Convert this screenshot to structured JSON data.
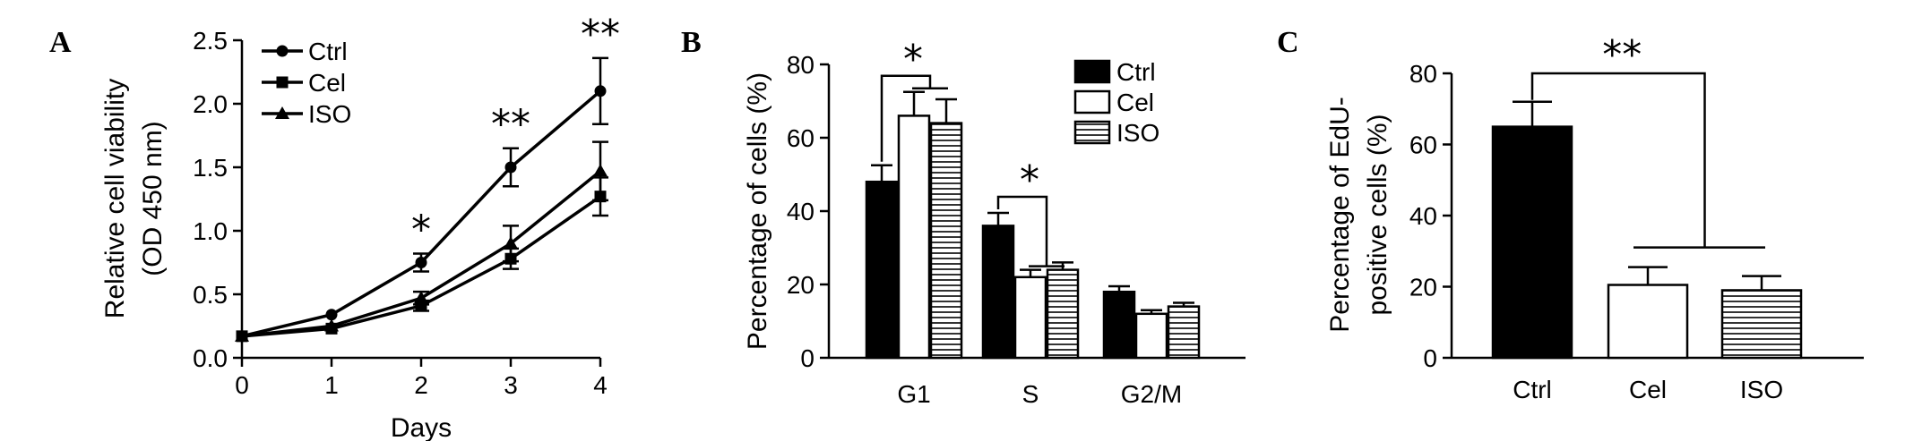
{
  "chart_data": [
    {
      "panel": "A",
      "type": "line",
      "xlabel": "Days",
      "ylabel_lines": [
        "Relative cell viability",
        "(OD 450 nm)"
      ],
      "x": [
        0,
        1,
        2,
        3,
        4
      ],
      "xticks": [
        "0",
        "1",
        "2",
        "3",
        "4"
      ],
      "xlim": [
        0,
        4
      ],
      "yticks": [
        "0.0",
        "0.5",
        "1.0",
        "1.5",
        "2.0",
        "2.5"
      ],
      "ylim": [
        0,
        2.5
      ],
      "series": [
        {
          "name": "Ctrl",
          "marker": "circle",
          "values": [
            0.17,
            0.34,
            0.75,
            1.5,
            2.1
          ],
          "errors": [
            0.02,
            0.03,
            0.07,
            0.15,
            0.26
          ]
        },
        {
          "name": "Cel",
          "marker": "square",
          "values": [
            0.17,
            0.23,
            0.41,
            0.78,
            1.27
          ],
          "errors": [
            0.02,
            0.02,
            0.04,
            0.08,
            0.15
          ]
        },
        {
          "name": "ISO",
          "marker": "triangle",
          "values": [
            0.17,
            0.25,
            0.47,
            0.9,
            1.47
          ],
          "errors": [
            0.02,
            0.02,
            0.05,
            0.14,
            0.23
          ]
        }
      ],
      "annotations": [
        {
          "text": "*",
          "x": 2
        },
        {
          "text": "**",
          "x": 3
        },
        {
          "text": "**",
          "x": 4
        }
      ],
      "legend": "top-left"
    },
    {
      "panel": "B",
      "type": "bar",
      "ylabel": "Percentage of cells (%)",
      "categories": [
        "G1",
        "S",
        "G2/M"
      ],
      "yticks": [
        "0",
        "20",
        "40",
        "60",
        "80"
      ],
      "ylim": [
        0,
        80
      ],
      "series": [
        {
          "name": "Ctrl",
          "fill": "black",
          "values": [
            48,
            36,
            18
          ],
          "errors": [
            4.5,
            3.5,
            1.5
          ]
        },
        {
          "name": "Cel",
          "fill": "white",
          "values": [
            66,
            22,
            12
          ],
          "errors": [
            6.5,
            2.0,
            1.0
          ]
        },
        {
          "name": "ISO",
          "fill": "striped",
          "values": [
            64,
            24,
            14
          ],
          "errors": [
            6.5,
            2.0,
            1.0
          ]
        }
      ],
      "annotations": [
        {
          "text": "*",
          "category": "G1"
        },
        {
          "text": "*",
          "category": "S"
        }
      ],
      "legend": "top-right"
    },
    {
      "panel": "C",
      "type": "bar",
      "ylabel_lines": [
        "Percentage of EdU-",
        "positive cells (%)"
      ],
      "categories": [
        "Ctrl",
        "Cel",
        "ISO"
      ],
      "yticks": [
        "0",
        "20",
        "40",
        "60",
        "80"
      ],
      "ylim": [
        0,
        80
      ],
      "values": [
        65,
        20.5,
        19
      ],
      "errors": [
        7,
        5,
        4
      ],
      "fills": [
        "black",
        "white",
        "striped"
      ],
      "annotations": [
        {
          "text": "**"
        }
      ]
    }
  ]
}
